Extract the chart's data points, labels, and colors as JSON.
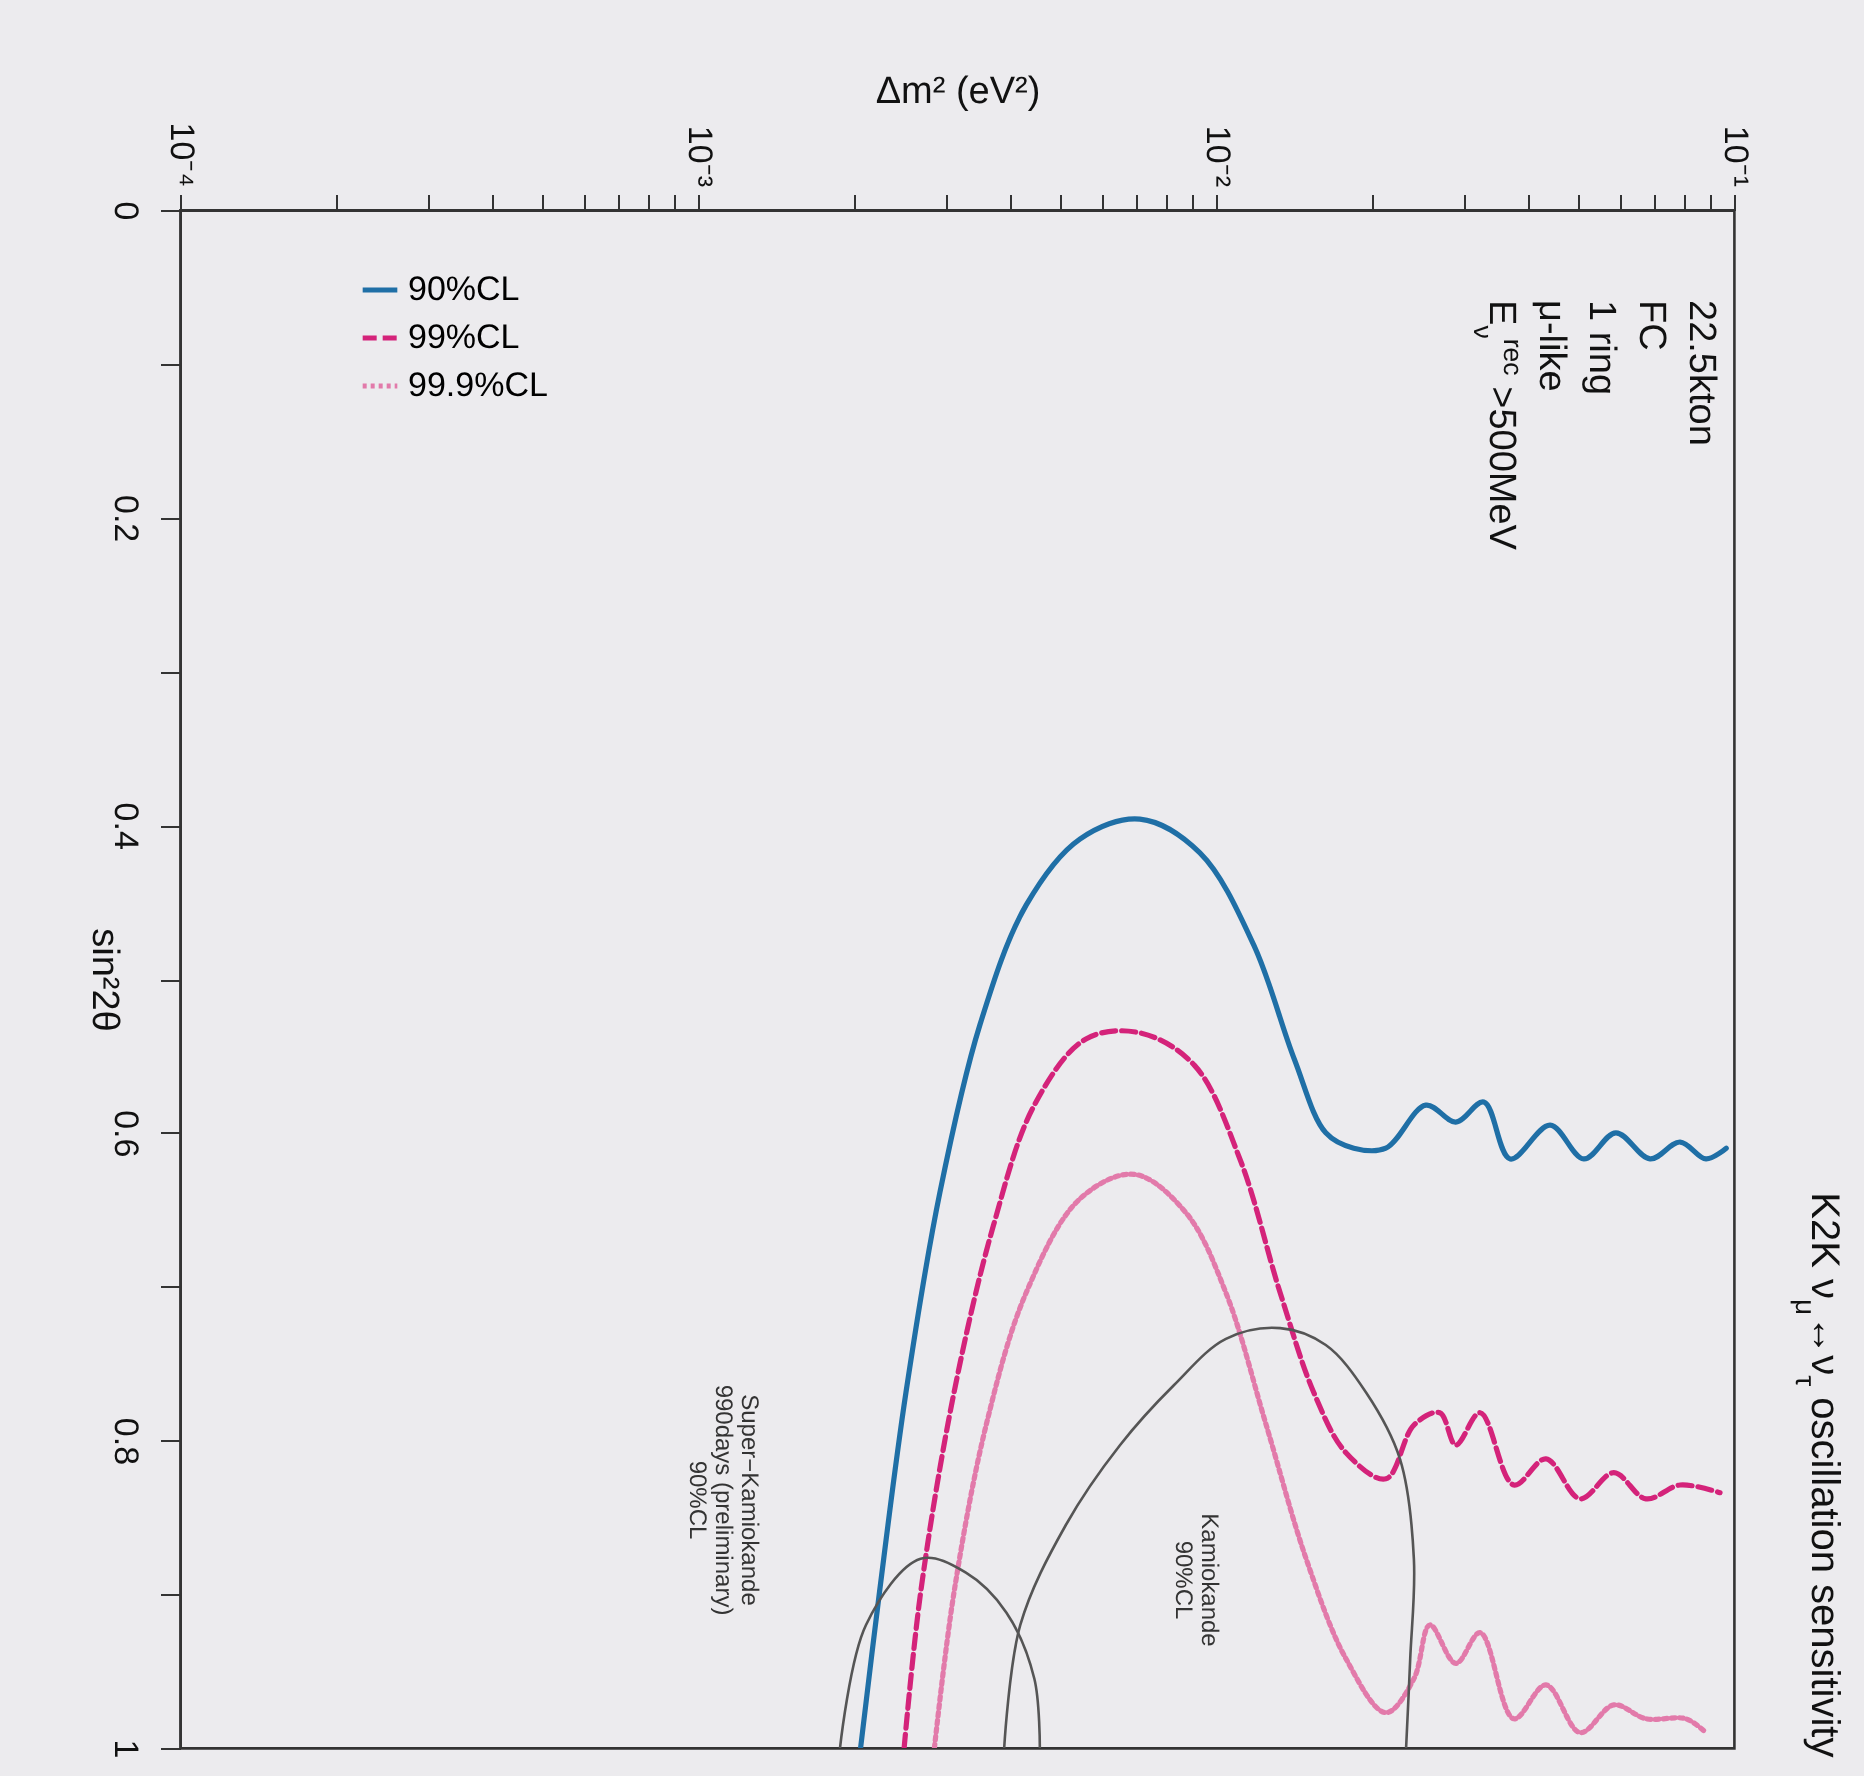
{
  "chart_data": {
    "type": "line",
    "title": "K2K ν$_{μ}$↔ν$_{τ}$ oscillation sensitivity",
    "x2label": "Δm² (eV²)",
    "ylabel": "sin²2θ",
    "log": "x",
    "legend": "top left",
    "ylim": [
      1,
      0
    ],
    "yticks": [
      0,
      {
        "value": 0.1,
        "label": null
      },
      0.2,
      {
        "value": 0.3,
        "label": null
      },
      0.4,
      {
        "value": 0.5,
        "label": null
      },
      0.6,
      {
        "value": 0.7,
        "label": null
      },
      0.8,
      {
        "value": 0.9,
        "label": null
      },
      1
    ],
    "xlim": [
      0.0001,
      0.1
    ],
    "xticks": [
      {
        "value": 0.0001,
        "label": "10⁻⁴"
      },
      {
        "value": 0.0002,
        "label": null
      },
      {
        "value": 0.0003,
        "label": null
      },
      {
        "value": 0.0004,
        "label": null
      },
      {
        "value": 0.0005,
        "label": null
      },
      {
        "value": 0.0006,
        "label": null
      },
      {
        "value": 0.0007,
        "label": null
      },
      {
        "value": 0.0008,
        "label": null
      },
      {
        "value": 0.0009,
        "label": null
      },
      {
        "value": 0.001,
        "label": "10⁻³"
      },
      {
        "value": 0.002,
        "label": null
      },
      {
        "value": 0.003,
        "label": null
      },
      {
        "value": 0.004,
        "label": null
      },
      {
        "value": 0.005,
        "label": null
      },
      {
        "value": 0.006,
        "label": null
      },
      {
        "value": 0.007,
        "label": null
      },
      {
        "value": 0.008,
        "label": null
      },
      {
        "value": 0.009,
        "label": null
      },
      {
        "value": 0.01,
        "label": "10⁻²"
      },
      {
        "value": 0.02,
        "label": null
      },
      {
        "value": 0.03,
        "label": null
      },
      {
        "value": 0.04,
        "label": null
      },
      {
        "value": 0.05,
        "label": null
      },
      {
        "value": 0.06,
        "label": null
      },
      {
        "value": 0.07,
        "label": null
      },
      {
        "value": 0.08,
        "label": null
      },
      {
        "value": 0.09,
        "label": null
      },
      {
        "value": 0.1,
        "label": "10⁻¹"
      }
    ],
    "series": [
      {
        "name": "90%CL",
        "color": "#1f6fa6",
        "line_style": "solid",
        "values": [
          1.0,
          0.899,
          0.769,
          0.639,
          0.53,
          0.452,
          0.409,
          0.396,
          0.418,
          0.478,
          0.552,
          0.6,
          0.61,
          0.61,
          0.582,
          0.593,
          0.58,
          0.617,
          0.595,
          0.617,
          0.6,
          0.617,
          0.606,
          0.617,
          0.61
        ],
        "x": [
          0.00206,
          0.00224,
          0.00252,
          0.00293,
          0.0035,
          0.0043,
          0.00546,
          0.00713,
          0.00931,
          0.01183,
          0.01416,
          0.01629,
          0.01845,
          0.02128,
          0.02541,
          0.02904,
          0.03289,
          0.03698,
          0.04416,
          0.05129,
          0.05916,
          0.06887,
          0.0787,
          0.08831,
          0.09661
        ]
      },
      {
        "name": "99%CL",
        "color": "#d4237a",
        "line_style": "dashed",
        "values": [
          1.0,
          0.899,
          0.769,
          0.66,
          0.582,
          0.539,
          0.535,
          0.556,
          0.617,
          0.704,
          0.769,
          0.808,
          0.825,
          0.79,
          0.782,
          0.803,
          0.782,
          0.829,
          0.812,
          0.838,
          0.821,
          0.838,
          0.829,
          0.834
        ],
        "x": [
          0.0025,
          0.00269,
          0.00312,
          0.00372,
          0.00446,
          0.00561,
          0.00713,
          0.00908,
          0.01112,
          0.0133,
          0.01545,
          0.01782,
          0.02128,
          0.0241,
          0.02704,
          0.02904,
          0.03236,
          0.03758,
          0.04335,
          0.05047,
          0.05861,
          0.06761,
          0.0787,
          0.09397
        ]
      },
      {
        "name": "99.9%CL",
        "color": "#e27aaa",
        "line_style": "dotted",
        "values": [
          1.0,
          0.899,
          0.79,
          0.704,
          0.643,
          0.627,
          0.652,
          0.704,
          0.79,
          0.877,
          0.942,
          0.977,
          0.955,
          0.92,
          0.945,
          0.925,
          0.981,
          0.959,
          0.99,
          0.972,
          0.981,
          0.981,
          0.99
        ],
        "x": [
          0.00286,
          0.00312,
          0.0036,
          0.0043,
          0.00546,
          0.00695,
          0.00875,
          0.01045,
          0.0125,
          0.01493,
          0.01782,
          0.02128,
          0.0241,
          0.02588,
          0.02904,
          0.03236,
          0.03758,
          0.04335,
          0.05047,
          0.05861,
          0.06761,
          0.0807,
          0.0883
        ]
      },
      {
        "color": "#555555",
        "line_style": "solid",
        "values": [
          1.0,
          0.92,
          0.855,
          0.803,
          0.764,
          0.734,
          0.727,
          0.738,
          0.769,
          0.812,
          0.877,
          0.942,
          1.0
        ],
        "x": [
          0.0039,
          0.00419,
          0.00513,
          0.00653,
          0.0083,
          0.01045,
          0.0133,
          0.01629,
          0.0195,
          0.02265,
          0.0241,
          0.02371,
          0.02328
        ]
      },
      {
        "color": "#555555",
        "line_style": "solid",
        "values": [
          1.0,
          0.92,
          0.877,
          0.886,
          0.912,
          0.955,
          1.0
        ],
        "x": [
          0.00188,
          0.00211,
          0.00269,
          0.00329,
          0.00394,
          0.00446,
          0.00457
        ]
      }
    ],
    "annotations": [
      "22.5kton\nFC\n1 ring\nμ-like\nE$_{ν}$$^{rec}$ >500MeV",
      "Kamiokande\n90%CL",
      "Super−Kamiokande\n990days (preliminary)\n90%CL"
    ]
  }
}
